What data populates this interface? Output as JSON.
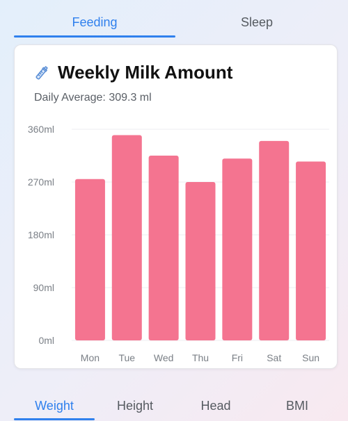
{
  "top_tabs": [
    {
      "label": "Feeding",
      "active": true
    },
    {
      "label": "Sleep",
      "active": false
    }
  ],
  "card": {
    "icon": "baby-bottle-icon",
    "title": "Weekly Milk Amount",
    "subtitle": "Daily Average: 309.3 ml"
  },
  "bottom_tabs": [
    {
      "label": "Weight",
      "active": true
    },
    {
      "label": "Height",
      "active": false
    },
    {
      "label": "Head",
      "active": false
    },
    {
      "label": "BMI",
      "active": false
    }
  ],
  "colors": {
    "accent": "#2f80ed",
    "bar": "#f47490"
  },
  "chart_data": {
    "type": "bar",
    "categories": [
      "Mon",
      "Tue",
      "Wed",
      "Thu",
      "Fri",
      "Sat",
      "Sun"
    ],
    "values": [
      275,
      350,
      315,
      270,
      310,
      340,
      305
    ],
    "ylim": [
      0,
      360
    ],
    "yticks": [
      0,
      90,
      180,
      270,
      360
    ],
    "ytick_labels": [
      "0ml",
      "90ml",
      "180ml",
      "270ml",
      "360ml"
    ],
    "grid": true
  }
}
